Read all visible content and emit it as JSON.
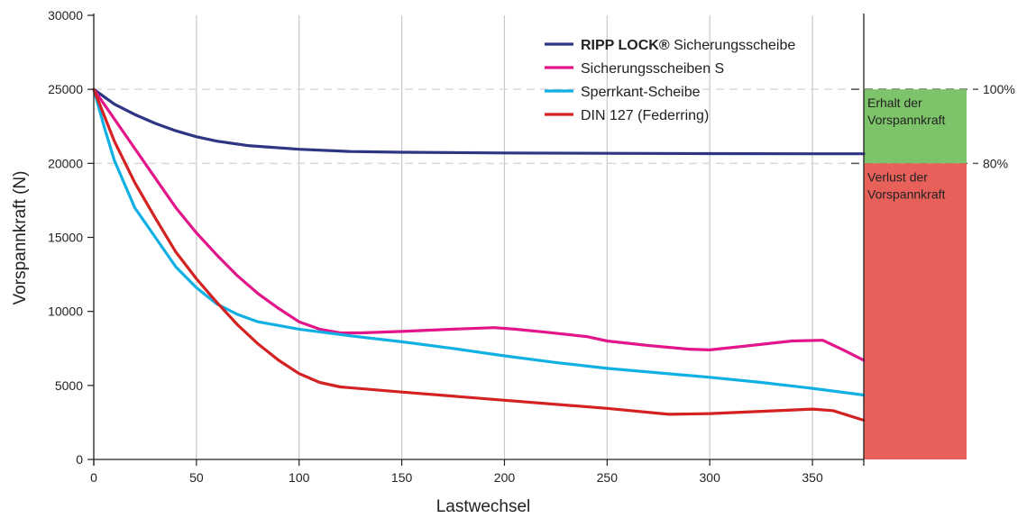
{
  "chart_data": {
    "type": "line",
    "title": "",
    "xlabel": "Lastwechsel",
    "ylabel": "Vorspannkraft (N)",
    "xlim": [
      0,
      375
    ],
    "ylim": [
      0,
      30000
    ],
    "x_ticks": [
      "0",
      "50",
      "100",
      "150",
      "200",
      "250",
      "300",
      "350"
    ],
    "y_ticks": [
      "0",
      "5000",
      "10000",
      "15000",
      "20000",
      "25000",
      "30000"
    ],
    "grid": true,
    "legend_position": "top-right",
    "series": [
      {
        "name": "Sicherungsscheibe",
        "brand_prefix": "RIPP LOCK®",
        "color": "#2e3583",
        "points": [
          [
            0,
            25000
          ],
          [
            10,
            24000
          ],
          [
            20,
            23300
          ],
          [
            30,
            22700
          ],
          [
            40,
            22200
          ],
          [
            50,
            21800
          ],
          [
            60,
            21500
          ],
          [
            75,
            21200
          ],
          [
            100,
            20950
          ],
          [
            125,
            20800
          ],
          [
            150,
            20750
          ],
          [
            200,
            20700
          ],
          [
            250,
            20680
          ],
          [
            300,
            20660
          ],
          [
            350,
            20650
          ],
          [
            375,
            20650
          ]
        ]
      },
      {
        "name": "Sicherungsscheiben S",
        "color": "#e2168a",
        "points": [
          [
            0,
            25000
          ],
          [
            10,
            23000
          ],
          [
            20,
            21000
          ],
          [
            30,
            19000
          ],
          [
            40,
            17000
          ],
          [
            50,
            15300
          ],
          [
            60,
            13800
          ],
          [
            70,
            12400
          ],
          [
            80,
            11200
          ],
          [
            90,
            10200
          ],
          [
            100,
            9300
          ],
          [
            110,
            8800
          ],
          [
            120,
            8550
          ],
          [
            130,
            8550
          ],
          [
            150,
            8650
          ],
          [
            175,
            8800
          ],
          [
            195,
            8900
          ],
          [
            205,
            8800
          ],
          [
            220,
            8600
          ],
          [
            240,
            8300
          ],
          [
            250,
            8000
          ],
          [
            270,
            7700
          ],
          [
            290,
            7450
          ],
          [
            300,
            7400
          ],
          [
            320,
            7700
          ],
          [
            340,
            8000
          ],
          [
            355,
            8050
          ],
          [
            365,
            7400
          ],
          [
            375,
            6700
          ]
        ]
      },
      {
        "name": "Sperrkant-Scheibe",
        "color": "#10b0e4",
        "points": [
          [
            0,
            25000
          ],
          [
            5,
            22500
          ],
          [
            10,
            20200
          ],
          [
            20,
            17000
          ],
          [
            30,
            15000
          ],
          [
            40,
            13000
          ],
          [
            50,
            11600
          ],
          [
            60,
            10500
          ],
          [
            70,
            9800
          ],
          [
            80,
            9300
          ],
          [
            100,
            8800
          ],
          [
            125,
            8350
          ],
          [
            150,
            7950
          ],
          [
            175,
            7500
          ],
          [
            200,
            7000
          ],
          [
            225,
            6550
          ],
          [
            250,
            6150
          ],
          [
            275,
            5850
          ],
          [
            300,
            5550
          ],
          [
            325,
            5200
          ],
          [
            350,
            4800
          ],
          [
            375,
            4350
          ]
        ]
      },
      {
        "name": "DIN 127 (Federring)",
        "color": "#d42121",
        "points": [
          [
            0,
            25000
          ],
          [
            10,
            21500
          ],
          [
            20,
            18700
          ],
          [
            30,
            16300
          ],
          [
            40,
            14000
          ],
          [
            50,
            12200
          ],
          [
            60,
            10600
          ],
          [
            70,
            9100
          ],
          [
            80,
            7800
          ],
          [
            90,
            6700
          ],
          [
            100,
            5800
          ],
          [
            110,
            5200
          ],
          [
            120,
            4900
          ],
          [
            150,
            4550
          ],
          [
            200,
            4000
          ],
          [
            250,
            3450
          ],
          [
            280,
            3050
          ],
          [
            300,
            3100
          ],
          [
            325,
            3250
          ],
          [
            350,
            3400
          ],
          [
            360,
            3300
          ],
          [
            375,
            2650
          ]
        ]
      }
    ],
    "reference_lines": [
      {
        "label": "100%",
        "value": 25000
      },
      {
        "label": "80%",
        "value": 20000
      }
    ],
    "zones": [
      {
        "label": "Erhalt der Vorspannkraft",
        "line1": "Erhalt der",
        "line2": "Vorspannkraft",
        "from": 20000,
        "to": 25000,
        "color": "#7dc36a"
      },
      {
        "label": "Verlust der Vorspannkraft",
        "line1": "Verlust der",
        "line2": "Vorspannkraft",
        "from": 0,
        "to": 20000,
        "color": "#e8605a"
      }
    ]
  }
}
